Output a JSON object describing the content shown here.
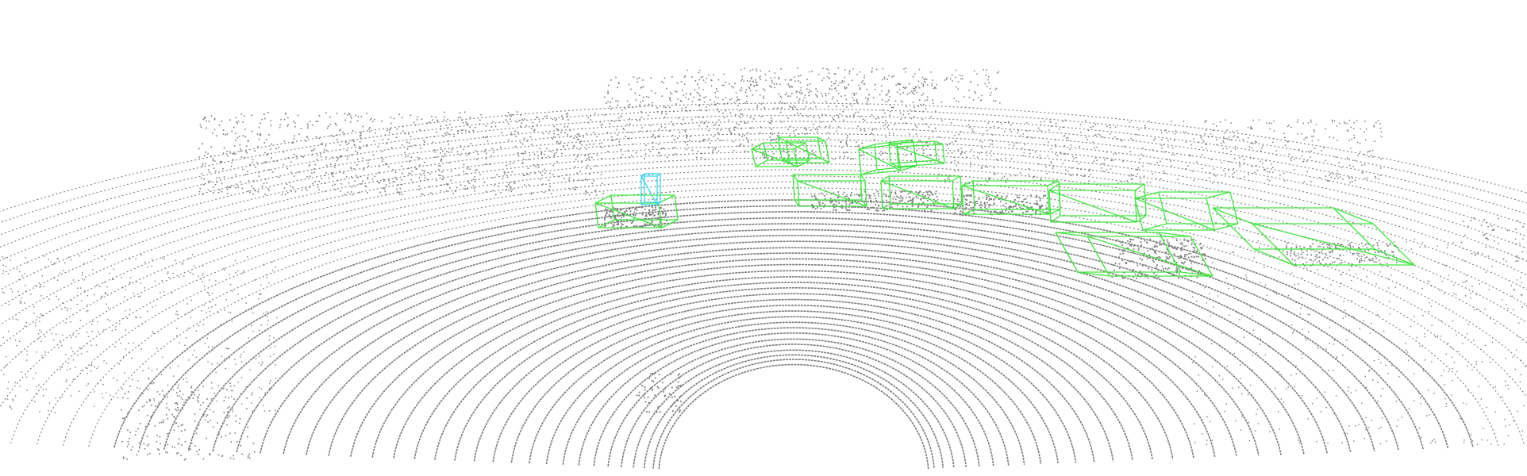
{
  "scene": {
    "kind": "lidar-point-cloud-with-3d-boxes",
    "background_color": "#ffffff",
    "point_color": "#7a7a7a",
    "car_box_color": "#3ee63e",
    "pedestrian_box_color": "#39d6f0"
  },
  "detections": [
    {
      "class": "Car"
    },
    {
      "class": "Car"
    },
    {
      "class": "Car"
    },
    {
      "class": "Car"
    },
    {
      "class": "Car"
    },
    {
      "class": "Car"
    },
    {
      "class": "Car"
    },
    {
      "class": "Car"
    },
    {
      "class": "Car"
    },
    {
      "class": "Car"
    },
    {
      "class": "Car"
    },
    {
      "class": "Car"
    },
    {
      "class": "Pedestrian"
    }
  ]
}
